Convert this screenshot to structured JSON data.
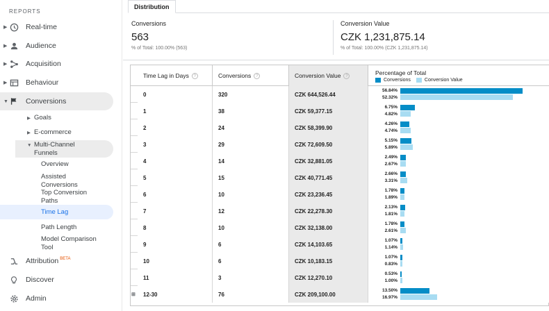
{
  "sidebar": {
    "heading": "REPORTS",
    "items": [
      {
        "label": "Real-time",
        "icon": "clock-icon"
      },
      {
        "label": "Audience",
        "icon": "person-icon"
      },
      {
        "label": "Acquisition",
        "icon": "acquisition-icon"
      },
      {
        "label": "Behaviour",
        "icon": "behaviour-icon"
      },
      {
        "label": "Conversions",
        "icon": "flag-icon"
      }
    ],
    "conversions_sub": {
      "goals": "Goals",
      "ecommerce": "E-commerce",
      "mcf": "Multi-Channel Funnels",
      "mcf_items": [
        "Overview",
        "Assisted Conversions",
        "Top Conversion Paths",
        "Time Lag",
        "Path Length",
        "Model Comparison Tool"
      ]
    },
    "attribution": {
      "label": "Attribution",
      "badge": "BETA"
    },
    "discover": "Discover",
    "admin": "Admin"
  },
  "tab": "Distribution",
  "summary": {
    "conversions": {
      "title": "Conversions",
      "value": "563",
      "sub": "% of Total: 100.00% (563)"
    },
    "conversion_value": {
      "title": "Conversion Value",
      "value": "CZK 1,231,875.14",
      "sub": "% of Total: 100.00% (CZK 1,231,875.14)"
    }
  },
  "table": {
    "headers": {
      "lag": "Time Lag in Days",
      "conversions": "Conversions",
      "value": "Conversion Value",
      "pct": "Percentage of Total"
    },
    "legend": {
      "conversions": "Conversions",
      "value": "Conversion Value"
    },
    "colors": {
      "conversions": "#058dc7",
      "value": "#a8dcf2"
    },
    "rows": [
      {
        "lag": "0",
        "conv": "320",
        "val": "CZK 644,526.44",
        "p1": "56.84%",
        "p2": "52.32%",
        "f1": 0.5684,
        "f2": 0.5232
      },
      {
        "lag": "1",
        "conv": "38",
        "val": "CZK 59,377.15",
        "p1": "6.75%",
        "p2": "4.82%",
        "f1": 0.0675,
        "f2": 0.0482
      },
      {
        "lag": "2",
        "conv": "24",
        "val": "CZK 58,399.90",
        "p1": "4.26%",
        "p2": "4.74%",
        "f1": 0.0426,
        "f2": 0.0474
      },
      {
        "lag": "3",
        "conv": "29",
        "val": "CZK 72,609.50",
        "p1": "5.15%",
        "p2": "5.89%",
        "f1": 0.0515,
        "f2": 0.0589
      },
      {
        "lag": "4",
        "conv": "14",
        "val": "CZK 32,881.05",
        "p1": "2.49%",
        "p2": "2.67%",
        "f1": 0.0249,
        "f2": 0.0267
      },
      {
        "lag": "5",
        "conv": "15",
        "val": "CZK 40,771.45",
        "p1": "2.66%",
        "p2": "3.31%",
        "f1": 0.0266,
        "f2": 0.0331
      },
      {
        "lag": "6",
        "conv": "10",
        "val": "CZK 23,236.45",
        "p1": "1.78%",
        "p2": "1.89%",
        "f1": 0.0178,
        "f2": 0.0189
      },
      {
        "lag": "7",
        "conv": "12",
        "val": "CZK 22,278.30",
        "p1": "2.13%",
        "p2": "1.81%",
        "f1": 0.0213,
        "f2": 0.0181
      },
      {
        "lag": "8",
        "conv": "10",
        "val": "CZK 32,138.00",
        "p1": "1.78%",
        "p2": "2.61%",
        "f1": 0.0178,
        "f2": 0.0261
      },
      {
        "lag": "9",
        "conv": "6",
        "val": "CZK 14,103.65",
        "p1": "1.07%",
        "p2": "1.14%",
        "f1": 0.0107,
        "f2": 0.0114
      },
      {
        "lag": "10",
        "conv": "6",
        "val": "CZK 10,183.15",
        "p1": "1.07%",
        "p2": "0.83%",
        "f1": 0.0107,
        "f2": 0.0083
      },
      {
        "lag": "11",
        "conv": "3",
        "val": "CZK 12,270.10",
        "p1": "0.53%",
        "p2": "1.00%",
        "f1": 0.0053,
        "f2": 0.01
      },
      {
        "lag": "12-30",
        "conv": "76",
        "val": "CZK 209,100.00",
        "p1": "13.50%",
        "p2": "16.97%",
        "f1": 0.135,
        "f2": 0.1697
      }
    ]
  }
}
